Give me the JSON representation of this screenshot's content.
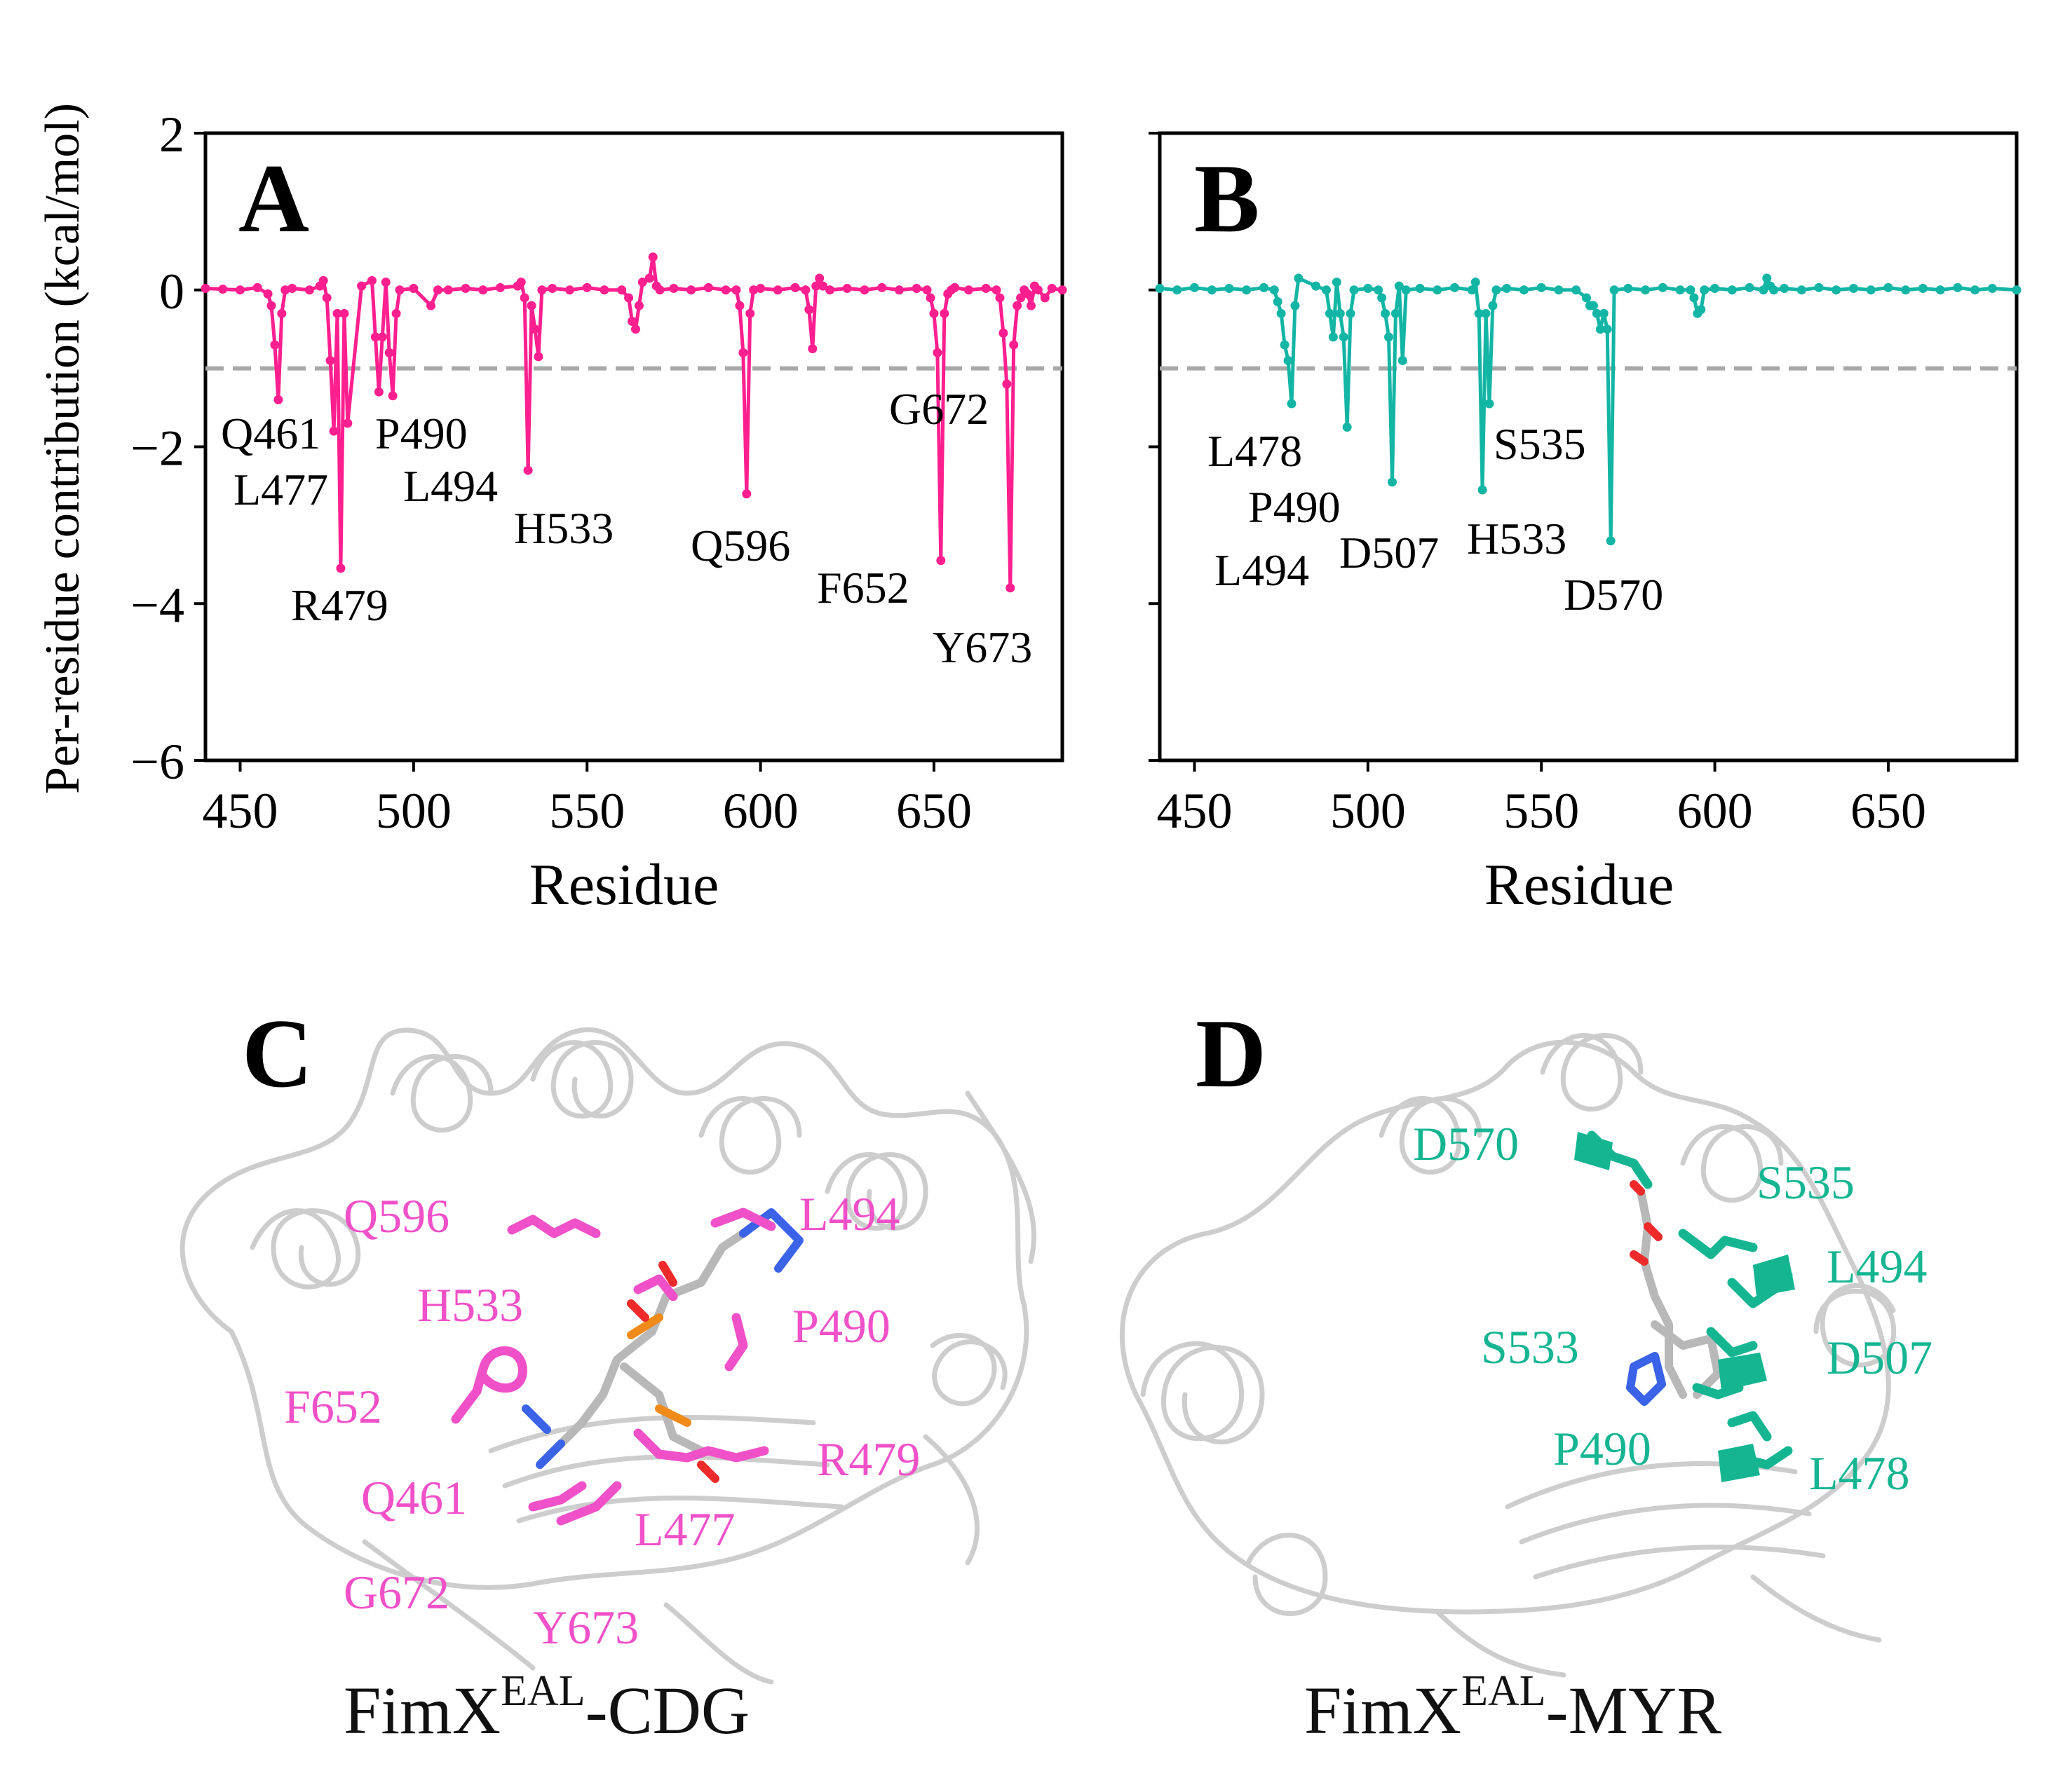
{
  "chart_data": [
    {
      "panel": "A",
      "type": "line",
      "xlabel": "Residue",
      "ylabel": "Per-residue contribution (kcal/mol)",
      "xlim": [
        440,
        687
      ],
      "ylim": [
        -6,
        2
      ],
      "xticks": [
        450,
        500,
        550,
        600,
        650
      ],
      "yticks": [
        2,
        0,
        -2,
        -4,
        -6
      ],
      "threshold": -1,
      "color": "#ff1f8f",
      "series": [
        {
          "x": [
            440,
            445,
            450,
            455,
            458,
            459,
            460,
            461,
            462,
            463,
            465,
            470,
            473,
            474,
            475,
            476,
            477,
            478,
            479,
            480,
            481,
            485,
            488,
            489,
            490,
            491,
            492,
            493,
            494,
            495,
            496,
            500,
            505,
            507,
            510,
            515,
            520,
            525,
            530,
            531,
            532,
            533,
            534,
            535,
            536,
            537,
            540,
            545,
            550,
            555,
            560,
            562,
            563,
            564,
            565,
            566,
            568,
            569,
            570,
            571,
            575,
            580,
            585,
            590,
            593,
            594,
            595,
            596,
            597,
            598,
            600,
            605,
            610,
            613,
            614,
            615,
            616,
            617,
            618,
            620,
            625,
            630,
            635,
            640,
            645,
            648,
            649,
            650,
            651,
            652,
            653,
            654,
            655,
            656,
            660,
            665,
            668,
            669,
            670,
            671,
            672,
            673,
            674,
            675,
            676,
            677,
            678,
            679,
            680,
            682,
            684,
            687
          ],
          "y": [
            0.02,
            0.01,
            0.0,
            0.03,
            -0.05,
            -0.2,
            -0.7,
            -1.4,
            -0.3,
            0.0,
            0.02,
            0.0,
            0.05,
            0.12,
            -0.1,
            -0.9,
            -1.8,
            -0.3,
            -3.55,
            -0.3,
            -1.7,
            0.05,
            0.12,
            -0.6,
            -1.3,
            -0.6,
            0.1,
            -0.8,
            -1.35,
            -0.3,
            0.0,
            0.02,
            -0.2,
            0.0,
            0.0,
            0.02,
            0.0,
            0.03,
            0.05,
            0.1,
            -0.1,
            -2.3,
            -0.2,
            -0.5,
            -0.85,
            0.0,
            0.02,
            0.0,
            0.03,
            0.0,
            0.0,
            -0.1,
            -0.4,
            -0.5,
            -0.2,
            0.1,
            0.15,
            0.42,
            0.05,
            0.0,
            0.02,
            0.0,
            0.03,
            0.0,
            0.0,
            -0.2,
            -0.8,
            -2.6,
            -0.3,
            0.0,
            0.02,
            0.0,
            0.03,
            0.0,
            -0.25,
            -0.75,
            0.05,
            0.15,
            0.05,
            0.0,
            0.02,
            0.0,
            0.03,
            0.0,
            0.02,
            0.0,
            -0.1,
            -0.3,
            -0.8,
            -3.45,
            -0.3,
            -0.05,
            0.0,
            0.03,
            0.0,
            0.02,
            0.0,
            -0.1,
            -0.55,
            -1.2,
            -3.8,
            -0.7,
            -0.2,
            -0.1,
            0.0,
            -0.05,
            -0.2,
            0.05,
            0.0,
            -0.1,
            0.02,
            0.0
          ]
        }
      ],
      "annotations": [
        "Q461",
        "L477",
        "R479",
        "P490",
        "L494",
        "H533",
        "Q596",
        "F652",
        "G672",
        "Y673"
      ]
    },
    {
      "panel": "B",
      "type": "line",
      "xlabel": "Residue",
      "ylabel": "",
      "xlim": [
        440,
        687
      ],
      "ylim": [
        -6,
        2
      ],
      "xticks": [
        450,
        500,
        550,
        600,
        650
      ],
      "yticks": [
        2,
        0,
        -2,
        -4,
        -6
      ],
      "threshold": -1,
      "color": "#13b5a5",
      "series": [
        {
          "x": [
            440,
            445,
            450,
            455,
            460,
            465,
            470,
            473,
            474,
            475,
            476,
            477,
            478,
            479,
            480,
            485,
            488,
            489,
            490,
            491,
            492,
            493,
            494,
            495,
            496,
            500,
            503,
            504,
            505,
            506,
            507,
            508,
            509,
            510,
            511,
            515,
            520,
            525,
            530,
            531,
            532,
            533,
            534,
            535,
            536,
            537,
            540,
            545,
            550,
            555,
            560,
            563,
            564,
            565,
            566,
            567,
            568,
            569,
            570,
            571,
            575,
            580,
            585,
            590,
            593,
            594,
            595,
            596,
            597,
            600,
            605,
            610,
            614,
            615,
            616,
            617,
            620,
            625,
            630,
            635,
            640,
            645,
            650,
            655,
            660,
            665,
            670,
            675,
            680,
            687
          ],
          "y": [
            0.02,
            0.0,
            0.03,
            0.0,
            0.02,
            0.0,
            0.03,
            0.0,
            -0.15,
            -0.3,
            -0.7,
            -0.9,
            -1.45,
            -0.2,
            0.15,
            0.05,
            0.0,
            -0.3,
            -0.6,
            0.1,
            -0.3,
            -0.6,
            -1.75,
            -0.3,
            0.0,
            0.02,
            0.0,
            -0.1,
            -0.3,
            -0.6,
            -2.45,
            -0.3,
            0.05,
            -0.9,
            0.0,
            0.02,
            0.0,
            0.03,
            0.0,
            0.1,
            -0.3,
            -2.55,
            -0.3,
            -1.45,
            -0.2,
            0.0,
            0.02,
            0.0,
            0.03,
            0.0,
            0.0,
            -0.1,
            -0.2,
            -0.2,
            -0.3,
            -0.5,
            -0.3,
            -0.5,
            -3.2,
            0.0,
            0.02,
            0.0,
            0.03,
            0.0,
            0.0,
            -0.1,
            -0.3,
            -0.25,
            0.0,
            0.02,
            0.0,
            0.03,
            0.0,
            0.15,
            0.05,
            0.0,
            0.02,
            0.0,
            0.03,
            0.0,
            0.02,
            0.0,
            0.03,
            0.0,
            0.02,
            0.0,
            0.03,
            0.0,
            0.02,
            0.0
          ]
        }
      ],
      "annotations": [
        "L478",
        "P490",
        "L494",
        "D507",
        "H533",
        "S535",
        "D570"
      ]
    }
  ],
  "panels": {
    "A": "A",
    "B": "B",
    "C": "C",
    "D": "D"
  },
  "structure_c": {
    "color": "#f050c8",
    "labels": [
      "Q596",
      "L494",
      "H533",
      "P490",
      "F652",
      "R479",
      "Q461",
      "L477",
      "G672",
      "Y673"
    ],
    "caption_main": "FimX",
    "caption_sup": "EAL",
    "caption_tail": "-CDG"
  },
  "structure_d": {
    "color": "#15b592",
    "labels": [
      "D570",
      "S535",
      "L494",
      "S533",
      "D507",
      "P490",
      "L478"
    ],
    "caption_main": "FimX",
    "caption_sup": "EAL",
    "caption_tail": "-MYR"
  }
}
